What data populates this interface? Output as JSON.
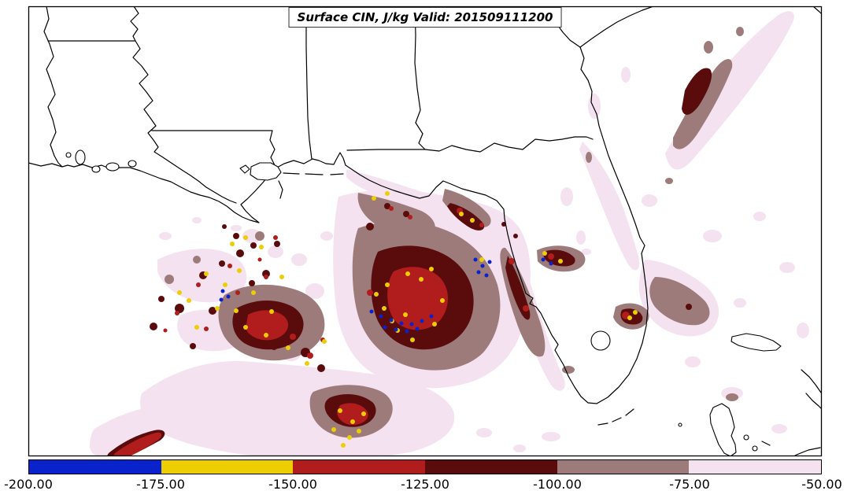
{
  "title": "Surface CIN, J/kg Valid: 201509111200",
  "colorbar": {
    "ticks": [
      "-200.00",
      "-175.00",
      "-150.00",
      "-125.00",
      "-100.00",
      "-75.00",
      "-50.00"
    ],
    "segments": [
      {
        "range": "-200 to -175",
        "color": "#0a22cc"
      },
      {
        "range": "-175 to -150",
        "color": "#ecce02"
      },
      {
        "range": "-150 to -125",
        "color": "#b11c1c"
      },
      {
        "range": "-125 to -100",
        "color": "#5a0c0c"
      },
      {
        "range": "-100 to -75",
        "color": "#9d7b7b"
      },
      {
        "range": "-75 to -50",
        "color": "#f4e2f0"
      }
    ]
  },
  "chart_data": {
    "type": "heatmap",
    "title": "Surface CIN, J/kg Valid: 201509111200",
    "variable": "Surface CIN",
    "units": "J/kg",
    "valid_time": "201509111200",
    "contour_levels": [
      -200,
      -175,
      -150,
      -125,
      -100,
      -75,
      -50
    ],
    "level_colors": [
      "#0a22cc",
      "#ecce02",
      "#b11c1c",
      "#5a0c0c",
      "#9d7b7b",
      "#f4e2f0"
    ],
    "colorbar_ticks": [
      "-200.00",
      "-175.00",
      "-150.00",
      "-125.00",
      "-100.00",
      "-75.00",
      "-50.00"
    ],
    "legend_position": "bottom",
    "region": "U.S. Gulf Coast, Florida and adjacent Gulf of Mexico / Atlantic",
    "notes": "Filled contour map; strongest inhibition (blue/yellow, -200 to -150 J/kg) in small pockets over the north-central Gulf of Mexico; broad weak CIN (pale pink, -75 to -50) over the Gulf, Florida and the Atlantic."
  }
}
